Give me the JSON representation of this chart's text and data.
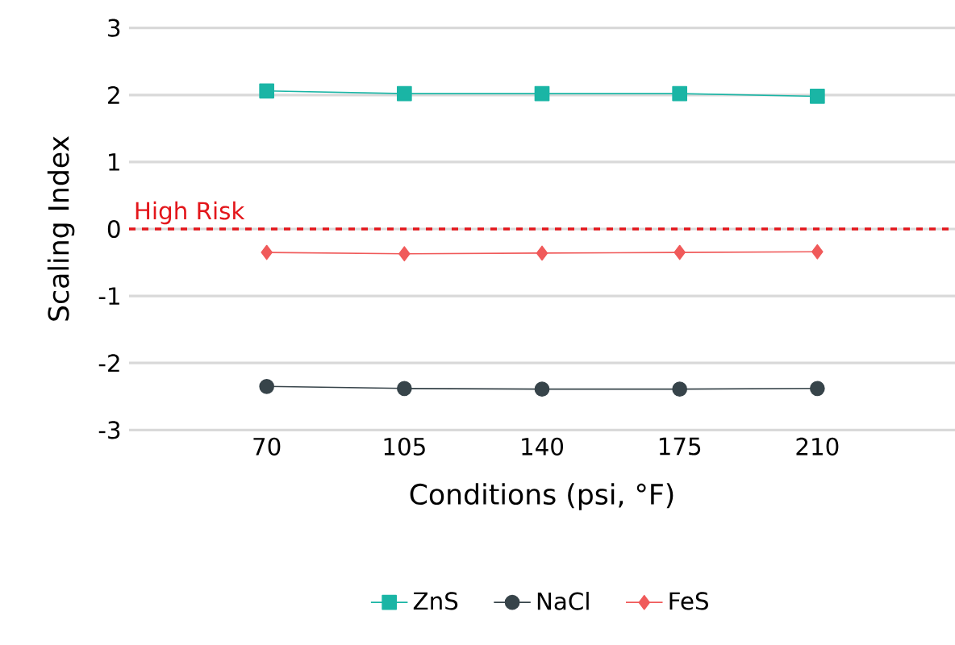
{
  "chart_data": {
    "type": "line",
    "xlabel": "Conditions (psi, °F)",
    "ylabel": "Scaling Index",
    "categories": [
      "70",
      "105",
      "140",
      "175",
      "210"
    ],
    "series": [
      {
        "name": "ZnS",
        "color": "#1ab5a5",
        "marker": "square",
        "values": [
          2.06,
          2.02,
          2.02,
          2.02,
          1.98
        ]
      },
      {
        "name": "NaCl",
        "color": "#37444a",
        "marker": "circle",
        "values": [
          -2.35,
          -2.38,
          -2.39,
          -2.39,
          -2.38
        ]
      },
      {
        "name": "FeS",
        "color": "#f05a5a",
        "marker": "diamond",
        "values": [
          -0.35,
          -0.37,
          -0.36,
          -0.35,
          -0.34
        ]
      }
    ],
    "ylim": [
      -3,
      3
    ],
    "yticks": [
      -3,
      -2,
      -1,
      0,
      1,
      2,
      3
    ],
    "grid": "y",
    "legend": "bottom",
    "ref_lines": [
      {
        "axis": "y",
        "value": 0,
        "label": "High Risk",
        "color": "#e3161b",
        "line_style": "dashed"
      }
    ]
  }
}
